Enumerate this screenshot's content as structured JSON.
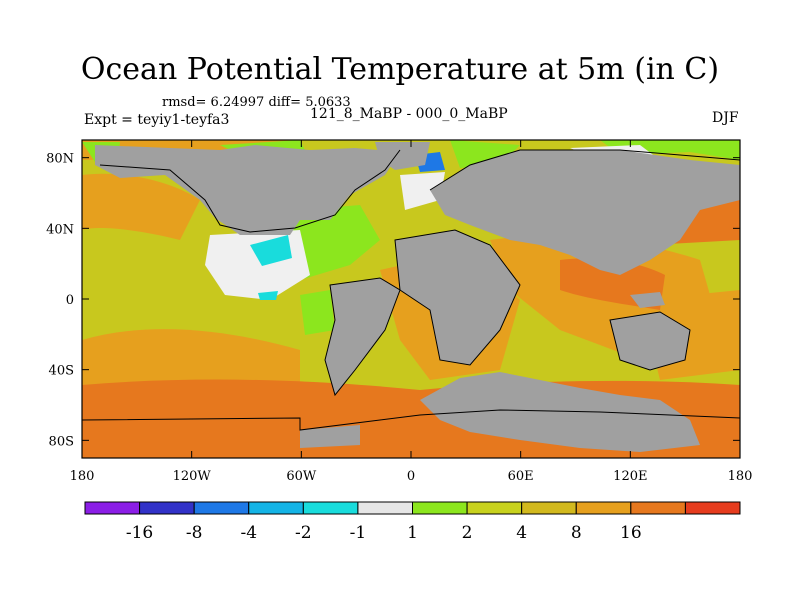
{
  "header": {
    "title": "Ocean Potential Temperature at 5m (in C)",
    "stats": "rmsd= 6.24997 diff= 5.0633",
    "experiment": "Expt = teyiy1-teyfa3",
    "subtitle": "121_8_MaBP - 000_0_MaBP",
    "season": "DJF"
  },
  "map": {
    "projection": "cylindrical equidistant",
    "lon_range": [
      -180,
      180
    ],
    "lat_range": [
      -90,
      90
    ],
    "x_ticks": [
      {
        "lon": -180,
        "label": "180"
      },
      {
        "lon": -120,
        "label": "120W"
      },
      {
        "lon": -60,
        "label": "60W"
      },
      {
        "lon": 0,
        "label": "0"
      },
      {
        "lon": 60,
        "label": "60E"
      },
      {
        "lon": 120,
        "label": "120E"
      },
      {
        "lon": 180,
        "label": "180"
      }
    ],
    "y_ticks": [
      {
        "lat": 80,
        "label": "80N"
      },
      {
        "lat": 40,
        "label": "40N"
      },
      {
        "lat": 0,
        "label": "0"
      },
      {
        "lat": -40,
        "label": "40S"
      },
      {
        "lat": -80,
        "label": "80S"
      }
    ],
    "land_color": "#a0a0a0",
    "field_description": "ocean temperature difference field"
  },
  "colorbar": {
    "colors": [
      "#8b1ee6",
      "#3232c8",
      "#1e78e6",
      "#14b4e6",
      "#19dcdc",
      "#e6e6e6",
      "#8ce61e",
      "#c8d21e",
      "#d2b91e",
      "#e6a01e",
      "#e6781e",
      "#e63c1e"
    ],
    "labels": [
      "-16",
      "-8",
      "-4",
      "-2",
      "-1",
      "1",
      "2",
      "4",
      "8",
      "16"
    ]
  },
  "legend": {
    "colors": {
      "background_ocean": "#c8c81e",
      "warm_orange": "#e6a01e",
      "dark_orange": "#e6781e",
      "land": "#a0a0a0",
      "white": "#f0f0f0",
      "cyan": "#19dcdc",
      "green": "#8ce61e"
    }
  }
}
